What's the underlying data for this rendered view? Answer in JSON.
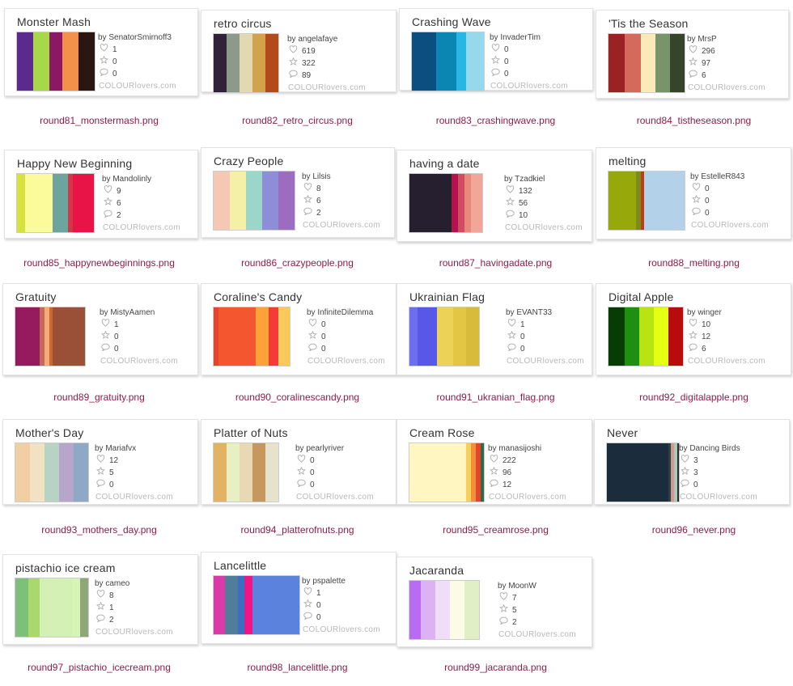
{
  "brand": "COLOURlovers.com",
  "items": [
    {
      "title": "Monster Mash",
      "by": "by SenatorSmirnoff3",
      "hearts": "1",
      "stars": "0",
      "comments": "0",
      "colors": [
        "#5a2a8e",
        "#a6d84a",
        "#8c1865",
        "#f3904a",
        "#2a1712"
      ],
      "filename": "round81_monstermash.png"
    },
    {
      "title": "retro circus",
      "by": "by angelafaye",
      "hearts": "619",
      "stars": "322",
      "comments": "89",
      "colors": [
        "#2e2338",
        "#8c9a8b",
        "#e2d9b0",
        "#d2a24c",
        "#b34a1c"
      ],
      "filename": "round82_retro_circus.png"
    },
    {
      "title": "Crashing Wave",
      "by": "by InvaderTim",
      "hearts": "0",
      "stars": "0",
      "comments": "0",
      "colors": [
        "#0a4f80",
        "#0b86b3",
        "#27b7e2",
        "#97d9ec",
        "#eaf2f7"
      ],
      "filename": "round83_crashingwave.png"
    },
    {
      "title": "'Tis the Season",
      "by": "by MrsP",
      "hearts": "296",
      "stars": "97",
      "comments": "6",
      "colors": [
        "#9a2222",
        "#d46a5c",
        "#fbeab9",
        "#79936a",
        "#36442c"
      ],
      "filename": "round84_tistheseason.png"
    },
    {
      "title": "Happy New Beginning",
      "by": "by Mandolinly",
      "hearts": "9",
      "stars": "6",
      "comments": "2",
      "colors": [
        "#d6e33a",
        "#fbfb9c",
        "#6ba59e",
        "#d23648",
        "#e81448"
      ],
      "filename": "round85_happynewbeginnings.png"
    },
    {
      "title": "Crazy People",
      "by": "by Lilsis",
      "hearts": "8",
      "stars": "6",
      "comments": "2",
      "colors": [
        "#f5c8b4",
        "#f4f0a8",
        "#9ad6ca",
        "#8e8ed8",
        "#9d6cc0"
      ],
      "filename": "round86_crazypeople.png"
    },
    {
      "title": "having a date",
      "by": "by Tzadkiel",
      "hearts": "132",
      "stars": "56",
      "comments": "10",
      "colors": [
        "#261f30",
        "#b5124e",
        "#d14b61",
        "#e8877a",
        "#f2a698"
      ],
      "filename": "round87_havingadate.png"
    },
    {
      "title": "melting",
      "by": "by EstelleR843",
      "hearts": "0",
      "stars": "0",
      "comments": "0",
      "colors": [
        "#97a80a",
        "#7f8a1d",
        "#b7401a",
        "#b3d1e8",
        "#b3d1e8"
      ],
      "filename": "round88_melting.png"
    },
    {
      "title": "Gratuity",
      "by": "by MistyAamen",
      "hearts": "1",
      "stars": "0",
      "comments": "0",
      "colors": [
        "#951a5e",
        "#c56a58",
        "#f4ad76",
        "#c9692e",
        "#9a5036"
      ],
      "filename": "round89_gratuity.png"
    },
    {
      "title": "Coraline's Candy",
      "by": "by InfiniteDilemma",
      "hearts": "0",
      "stars": "0",
      "comments": "0",
      "colors": [
        "#e5452c",
        "#f4572f",
        "#fba338",
        "#f23c35",
        "#f9c95a"
      ],
      "filename": "round90_coralinescandy.png"
    },
    {
      "title": "Ukrainian Flag",
      "by": "by EVANT33",
      "hearts": "1",
      "stars": "0",
      "comments": "0",
      "colors": [
        "#6e6ef0",
        "#5757e8",
        "#ecd257",
        "#e3c744",
        "#d8bb3b"
      ],
      "filename": "round91_ukranian_flag.png"
    },
    {
      "title": "Digital Apple",
      "by": "by winger",
      "hearts": "10",
      "stars": "12",
      "comments": "6",
      "colors": [
        "#073d05",
        "#1f8f12",
        "#b9e412",
        "#e4ff12",
        "#b80b0b"
      ],
      "filename": "round92_digitalapple.png"
    },
    {
      "title": "Mother's Day",
      "by": "by Mariafvx",
      "hearts": "12",
      "stars": "5",
      "comments": "0",
      "colors": [
        "#f1cfa4",
        "#f2e1c2",
        "#b6d3c4",
        "#b8a5cc",
        "#8ea9c6"
      ],
      "filename": "round93_mothers_day.png"
    },
    {
      "title": "Platter of Nuts",
      "by": "by pearlyriver",
      "hearts": "0",
      "stars": "0",
      "comments": "0",
      "colors": [
        "#e3b364",
        "#e6f0c2",
        "#e8d8b4",
        "#c6985f",
        "#e6e2cc"
      ],
      "filename": "round94_platterofnuts.png"
    },
    {
      "title": "Cream Rose",
      "by": "by manasijoshi",
      "hearts": "222",
      "stars": "96",
      "comments": "12",
      "colors": [
        "#fff6c1",
        "#f8cf5b",
        "#f28f3d",
        "#e3462e",
        "#2d6b4b"
      ],
      "filename": "round95_creamrose.png"
    },
    {
      "title": "Never",
      "by": "by Dancing Birds",
      "hearts": "3",
      "stars": "3",
      "comments": "0",
      "colors": [
        "#1b2c3c",
        "#2d4048",
        "#d4988b",
        "#a9c8c0",
        "#2b2b2b"
      ],
      "filename": "round96_never.png"
    },
    {
      "title": "pistachio ice cream",
      "by": "by cameo",
      "hearts": "8",
      "stars": "1",
      "comments": "2",
      "colors": [
        "#7ec07a",
        "#a9d86c",
        "#d4f0b4",
        "#d6f4b4",
        "#8fa678"
      ],
      "filename": "round97_pistachio_icecream.png"
    },
    {
      "title": "Lancelittle",
      "by": "by pspalette",
      "hearts": "1",
      "stars": "0",
      "comments": "0",
      "colors": [
        "#d93aa8",
        "#527c9b",
        "#3a6ec0",
        "#ee1684",
        "#5b82dd"
      ],
      "filename": "round98_lancelittle.png"
    },
    {
      "title": "Jacaranda",
      "by": "by MoonW",
      "hearts": "7",
      "stars": "5",
      "comments": "2",
      "colors": [
        "#b86cf2",
        "#ddb2f5",
        "#f0def8",
        "#fbfbe8",
        "#e0efc6"
      ],
      "filename": "round99_jacaranda.png"
    }
  ]
}
